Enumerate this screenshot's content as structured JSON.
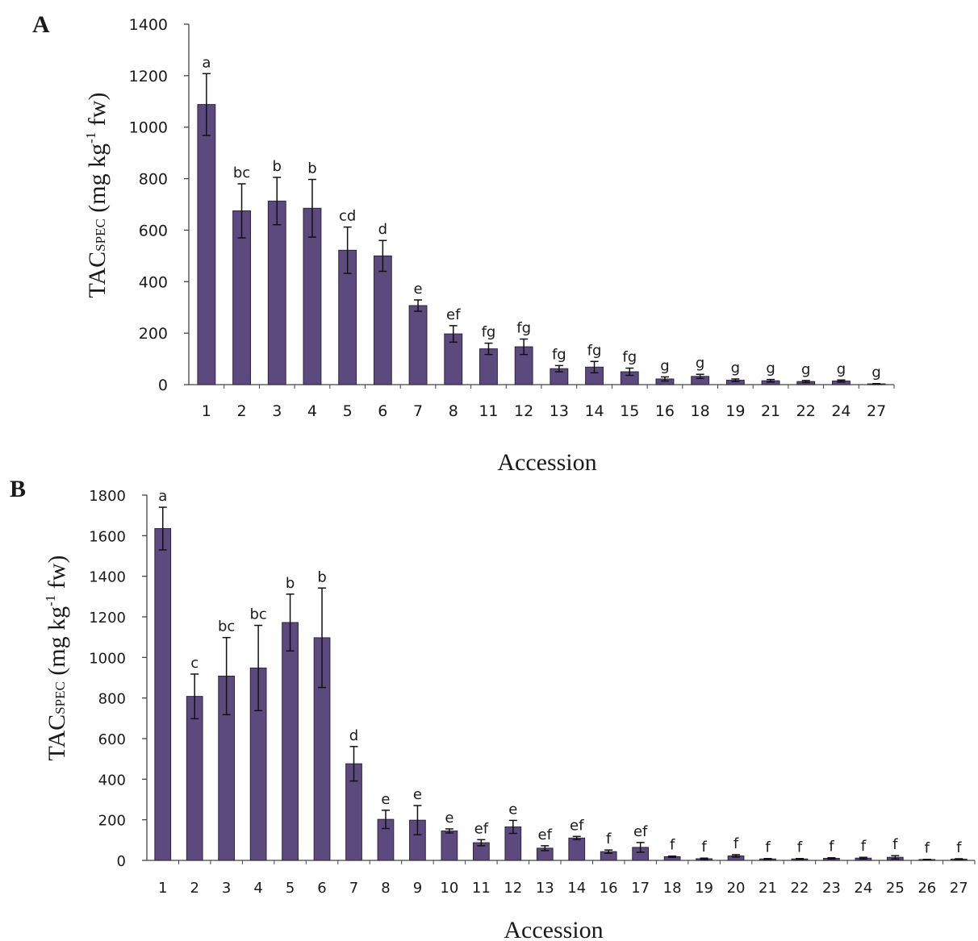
{
  "chart_data": [
    {
      "type": "bar",
      "panel_label": "A",
      "xlabel": "Accession",
      "ylabel_main": "TAC",
      "ylabel_sub": "SPEC",
      "ylabel_mid": " (mg kg",
      "ylabel_sup": "-1",
      "ylabel_end": " fw)",
      "ylim": [
        0,
        1400
      ],
      "yticks": [
        0,
        200,
        400,
        600,
        800,
        1000,
        1200,
        1400
      ],
      "bar_color": "#5c4a7e",
      "categories": [
        "1",
        "2",
        "3",
        "4",
        "5",
        "6",
        "7",
        "8",
        "11",
        "12",
        "13",
        "14",
        "15",
        "16",
        "18",
        "19",
        "21",
        "22",
        "24",
        "27"
      ],
      "values": [
        1088,
        675,
        713,
        685,
        522,
        500,
        307,
        197,
        139,
        147,
        62,
        68,
        50,
        22,
        32,
        17,
        15,
        12,
        14,
        3
      ],
      "errors": [
        120,
        105,
        92,
        112,
        90,
        60,
        22,
        32,
        22,
        30,
        12,
        22,
        14,
        8,
        8,
        5,
        5,
        4,
        4,
        1
      ],
      "letters": [
        "a",
        "bc",
        "b",
        "b",
        "cd",
        "d",
        "e",
        "ef",
        "fg",
        "fg",
        "fg",
        "fg",
        "fg",
        "g",
        "g",
        "g",
        "g",
        "g",
        "g",
        "g"
      ]
    },
    {
      "type": "bar",
      "panel_label": "B",
      "xlabel": "Accession",
      "ylabel_main": "TAC",
      "ylabel_sub": "SPEC",
      "ylabel_mid": " (mg kg",
      "ylabel_sup": "-1",
      "ylabel_end": " fw)",
      "ylim": [
        0,
        1800
      ],
      "yticks": [
        0,
        200,
        400,
        600,
        800,
        1000,
        1200,
        1400,
        1600,
        1800
      ],
      "bar_color": "#5c4a7e",
      "categories": [
        "1",
        "2",
        "3",
        "4",
        "5",
        "6",
        "7",
        "8",
        "9",
        "10",
        "11",
        "12",
        "13",
        "14",
        "16",
        "17",
        "18",
        "19",
        "20",
        "21",
        "22",
        "23",
        "24",
        "25",
        "26",
        "27"
      ],
      "values": [
        1635,
        808,
        908,
        948,
        1172,
        1097,
        476,
        202,
        198,
        145,
        87,
        165,
        60,
        110,
        43,
        64,
        18,
        8,
        22,
        7,
        7,
        10,
        11,
        15,
        4,
        6
      ],
      "errors": [
        105,
        110,
        190,
        210,
        140,
        245,
        85,
        45,
        72,
        10,
        15,
        32,
        12,
        8,
        8,
        24,
        3,
        3,
        6,
        2,
        2,
        3,
        4,
        8,
        1,
        2
      ],
      "letters": [
        "a",
        "c",
        "bc",
        "bc",
        "b",
        "b",
        "d",
        "e",
        "e",
        "e",
        "ef",
        "e",
        "ef",
        "ef",
        "f",
        "ef",
        "f",
        "f",
        "f",
        "f",
        "f",
        "f",
        "f",
        "f",
        "f",
        "f"
      ]
    }
  ]
}
